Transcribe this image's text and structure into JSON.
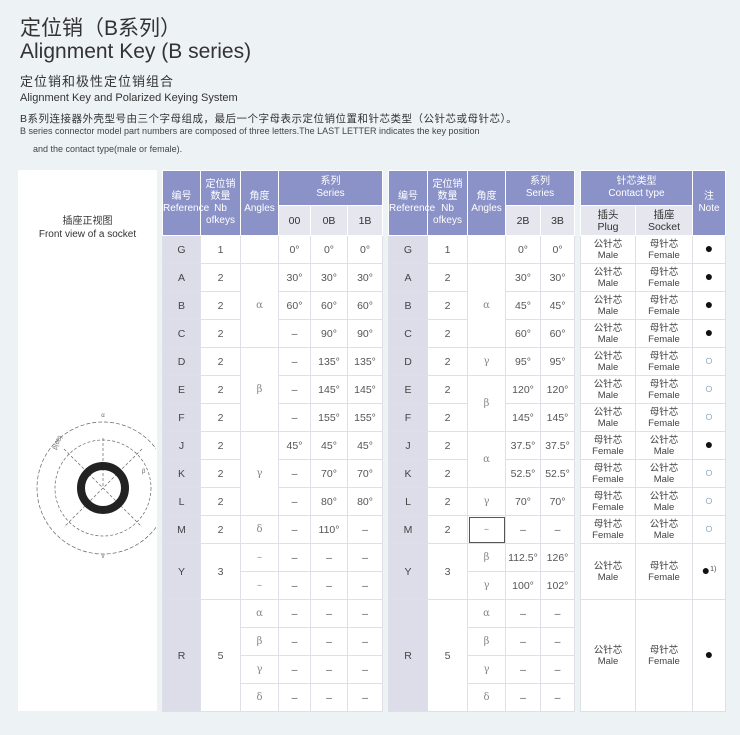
{
  "header": {
    "title_cn": "定位销（B系列）",
    "title_en": "Alignment Key (B series)",
    "subtitle_cn": "定位销和极性定位销组合",
    "subtitle_en": "Alignment Key and Polarized Keying System",
    "desc_cn": "B系列连接器外壳型号由三个字母组成，最后一个字母表示定位销位置和针芯类型（公针芯或母针芯）。",
    "desc_en_1": "B series connector model part numbers are composed of three letters.The LAST LETTER indicates the key position",
    "desc_en_2": "and the contact type(male or female)."
  },
  "left_panel": {
    "label_cn": "插座正视图",
    "label_en": "Front view of a socket",
    "diagram_labels": [
      "α",
      "β(6B)",
      "β",
      "α",
      "γ"
    ]
  },
  "colors": {
    "header": "#8a92c8",
    "ref_column": "#dcdde9",
    "background": "#edf2f5"
  },
  "col_headers": {
    "ref_cn": "编号",
    "ref_en": "Reference",
    "nb_cn": "定位销数量",
    "nb_en": "Nb ofkeys",
    "angle_cn": "角度",
    "angle_en": "Angles",
    "series_cn": "系列",
    "series_en": "Series"
  },
  "table1": {
    "series": [
      "00",
      "0B",
      "1B"
    ],
    "rows": [
      {
        "ref": "G",
        "nb": "1",
        "values": [
          [
            "0°",
            "0°",
            "0°"
          ]
        ]
      },
      {
        "ref": "A",
        "nb": "2",
        "values": [
          [
            "30°",
            "30°",
            "30°"
          ]
        ]
      },
      {
        "ref": "B",
        "nb": "2",
        "values": [
          [
            "60°",
            "60°",
            "60°"
          ]
        ]
      },
      {
        "ref": "C",
        "nb": "2",
        "values": [
          [
            "–",
            "90°",
            "90°"
          ]
        ]
      },
      {
        "ref": "D",
        "nb": "2",
        "values": [
          [
            "–",
            "135°",
            "135°"
          ]
        ]
      },
      {
        "ref": "E",
        "nb": "2",
        "values": [
          [
            "–",
            "145°",
            "145°"
          ]
        ]
      },
      {
        "ref": "F",
        "nb": "2",
        "values": [
          [
            "–",
            "155°",
            "155°"
          ]
        ]
      },
      {
        "ref": "J",
        "nb": "2",
        "values": [
          [
            "45°",
            "45°",
            "45°"
          ]
        ]
      },
      {
        "ref": "K",
        "nb": "2",
        "values": [
          [
            "–",
            "70°",
            "70°"
          ]
        ]
      },
      {
        "ref": "L",
        "nb": "2",
        "values": [
          [
            "–",
            "80°",
            "80°"
          ]
        ]
      },
      {
        "ref": "M",
        "nb": "2",
        "values": [
          [
            "–",
            "110°",
            "–"
          ]
        ]
      },
      {
        "ref": "Y",
        "nb": "3",
        "values": [
          [
            "–",
            "–",
            "–"
          ],
          [
            "–",
            "–",
            "–"
          ]
        ]
      },
      {
        "ref": "R",
        "nb": "5",
        "values": [
          [
            "–",
            "–",
            "–"
          ],
          [
            "–",
            "–",
            "–"
          ],
          [
            "–",
            "–",
            "–"
          ],
          [
            "–",
            "–",
            "–"
          ]
        ]
      }
    ],
    "angles": [
      {
        "label": "",
        "rows": 1
      },
      {
        "label": "α",
        "rows": 3
      },
      {
        "label": "β",
        "rows": 3
      },
      {
        "label": "γ",
        "rows": 3
      },
      {
        "label": "δ",
        "rows": 1
      },
      {
        "label": "–",
        "rows": 1
      },
      {
        "label": "–",
        "rows": 1
      },
      {
        "label": "α",
        "rows": 1
      },
      {
        "label": "β",
        "rows": 1
      },
      {
        "label": "γ",
        "rows": 1
      },
      {
        "label": "δ",
        "rows": 1
      }
    ]
  },
  "table2": {
    "series": [
      "2B",
      "3B"
    ],
    "rows": [
      {
        "ref": "G",
        "nb": "1",
        "values": [
          [
            "0°",
            "0°"
          ]
        ]
      },
      {
        "ref": "A",
        "nb": "2",
        "values": [
          [
            "30°",
            "30°"
          ]
        ]
      },
      {
        "ref": "B",
        "nb": "2",
        "values": [
          [
            "45°",
            "45°"
          ]
        ]
      },
      {
        "ref": "C",
        "nb": "2",
        "values": [
          [
            "60°",
            "60°"
          ]
        ]
      },
      {
        "ref": "D",
        "nb": "2",
        "values": [
          [
            "95°",
            "95°"
          ]
        ]
      },
      {
        "ref": "E",
        "nb": "2",
        "values": [
          [
            "120°",
            "120°"
          ]
        ]
      },
      {
        "ref": "F",
        "nb": "2",
        "values": [
          [
            "145°",
            "145°"
          ]
        ]
      },
      {
        "ref": "J",
        "nb": "2",
        "values": [
          [
            "37.5°",
            "37.5°"
          ]
        ]
      },
      {
        "ref": "K",
        "nb": "2",
        "values": [
          [
            "52.5°",
            "52.5°"
          ]
        ]
      },
      {
        "ref": "L",
        "nb": "2",
        "values": [
          [
            "70°",
            "70°"
          ]
        ]
      },
      {
        "ref": "M",
        "nb": "2",
        "values": [
          [
            "–",
            "–"
          ]
        ]
      },
      {
        "ref": "Y",
        "nb": "3",
        "values": [
          [
            "112.5°",
            "126°"
          ],
          [
            "100°",
            "102°"
          ]
        ]
      },
      {
        "ref": "R",
        "nb": "5",
        "values": [
          [
            "–",
            "–"
          ],
          [
            "–",
            "–"
          ],
          [
            "–",
            "–"
          ],
          [
            "–",
            "–"
          ]
        ]
      }
    ],
    "angles": [
      {
        "label": "",
        "rows": 1
      },
      {
        "label": "α",
        "rows": 3
      },
      {
        "label": "γ",
        "rows": 1
      },
      {
        "label": "β",
        "rows": 2
      },
      {
        "label": "α",
        "rows": 2
      },
      {
        "label": "γ",
        "rows": 1
      },
      {
        "label": "–",
        "rows": 1,
        "boxed": true
      },
      {
        "label": "β",
        "rows": 1
      },
      {
        "label": "γ",
        "rows": 1
      },
      {
        "label": "α",
        "rows": 1
      },
      {
        "label": "β",
        "rows": 1
      },
      {
        "label": "γ",
        "rows": 1
      },
      {
        "label": "δ",
        "rows": 1
      }
    ]
  },
  "contact_table": {
    "title_cn": "针芯类型",
    "title_en": "Contact type",
    "plug_cn": "插头",
    "plug_en": "Plug",
    "socket_cn": "插座",
    "socket_en": "Socket",
    "note_cn": "注",
    "note_en": "Note",
    "rows": [
      {
        "plug": [
          "公针芯",
          "Male"
        ],
        "socket": [
          "母针芯",
          "Female"
        ],
        "note": "filled",
        "rows": 1
      },
      {
        "plug": [
          "公针芯",
          "Male"
        ],
        "socket": [
          "母针芯",
          "Female"
        ],
        "note": "filled",
        "rows": 1
      },
      {
        "plug": [
          "公针芯",
          "Male"
        ],
        "socket": [
          "母针芯",
          "Female"
        ],
        "note": "filled",
        "rows": 1
      },
      {
        "plug": [
          "公针芯",
          "Male"
        ],
        "socket": [
          "母针芯",
          "Female"
        ],
        "note": "filled",
        "rows": 1
      },
      {
        "plug": [
          "公针芯",
          "Male"
        ],
        "socket": [
          "母针芯",
          "Female"
        ],
        "note": "open",
        "rows": 1
      },
      {
        "plug": [
          "公针芯",
          "Male"
        ],
        "socket": [
          "母针芯",
          "Female"
        ],
        "note": "open",
        "rows": 1
      },
      {
        "plug": [
          "公针芯",
          "Male"
        ],
        "socket": [
          "母针芯",
          "Female"
        ],
        "note": "open",
        "rows": 1
      },
      {
        "plug": [
          "母针芯",
          "Female"
        ],
        "socket": [
          "公针芯",
          "Male"
        ],
        "note": "filled",
        "rows": 1
      },
      {
        "plug": [
          "母针芯",
          "Female"
        ],
        "socket": [
          "公针芯",
          "Male"
        ],
        "note": "open",
        "rows": 1
      },
      {
        "plug": [
          "母针芯",
          "Female"
        ],
        "socket": [
          "公针芯",
          "Male"
        ],
        "note": "open",
        "rows": 1
      },
      {
        "plug": [
          "母针芯",
          "Female"
        ],
        "socket": [
          "公针芯",
          "Male"
        ],
        "note": "open",
        "rows": 1
      },
      {
        "plug": [
          "公针芯",
          "Male"
        ],
        "socket": [
          "母针芯",
          "Female"
        ],
        "note": "filled",
        "note_text": "1)",
        "rows": 2
      },
      {
        "plug": [
          "公针芯",
          "Male"
        ],
        "socket": [
          "母针芯",
          "Female"
        ],
        "note": "filled",
        "rows": 4
      }
    ]
  }
}
